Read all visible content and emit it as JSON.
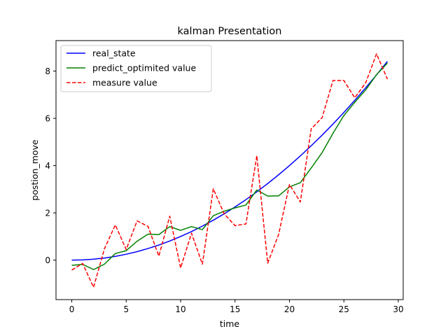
{
  "chart_data": {
    "type": "line",
    "title": "kalman Presentation",
    "xlabel": "time",
    "ylabel": "postion_move",
    "xlim": [
      -1.45,
      30.45
    ],
    "ylim": [
      -1.67,
      9.29
    ],
    "xticks": [
      0,
      5,
      10,
      15,
      20,
      25,
      30
    ],
    "yticks": [
      0,
      2,
      4,
      6,
      8
    ],
    "grid": false,
    "legend_position": "top-left",
    "series": [
      {
        "name": "real_state",
        "color": "#0000ff",
        "style": "solid",
        "x": [
          0,
          1,
          2,
          3,
          4,
          5,
          6,
          7,
          8,
          9,
          10,
          11,
          12,
          13,
          14,
          15,
          16,
          17,
          18,
          19,
          20,
          21,
          22,
          23,
          24,
          25,
          26,
          27,
          28,
          29
        ],
        "y": [
          0.0,
          0.01,
          0.04,
          0.09,
          0.16,
          0.25,
          0.36,
          0.49,
          0.64,
          0.81,
          1.0,
          1.21,
          1.44,
          1.69,
          1.96,
          2.25,
          2.56,
          2.89,
          3.24,
          3.61,
          4.0,
          4.41,
          4.84,
          5.29,
          5.76,
          6.25,
          6.76,
          7.29,
          7.84,
          8.41
        ]
      },
      {
        "name": "predict_optimited value",
        "color": "#008000",
        "style": "solid",
        "x": [
          0,
          1,
          2,
          3,
          4,
          5,
          6,
          7,
          8,
          9,
          10,
          11,
          12,
          13,
          14,
          15,
          16,
          17,
          18,
          19,
          20,
          21,
          22,
          23,
          24,
          25,
          26,
          27,
          28,
          29
        ],
        "y": [
          -0.22,
          -0.18,
          -0.4,
          -0.17,
          0.28,
          0.4,
          0.8,
          1.1,
          1.08,
          1.42,
          1.26,
          1.42,
          1.29,
          1.88,
          2.07,
          2.21,
          2.33,
          2.97,
          2.71,
          2.72,
          3.1,
          3.28,
          3.9,
          4.55,
          5.37,
          6.12,
          6.68,
          7.2,
          7.85,
          8.34
        ]
      },
      {
        "name": "measure value",
        "color": "#ff0000",
        "style": "dashed",
        "x": [
          0,
          1,
          2,
          3,
          4,
          5,
          6,
          7,
          8,
          9,
          10,
          11,
          12,
          13,
          14,
          15,
          16,
          17,
          18,
          19,
          20,
          21,
          22,
          23,
          24,
          25,
          26,
          27,
          28,
          29
        ],
        "y": [
          -0.42,
          -0.14,
          -1.15,
          0.48,
          1.49,
          0.45,
          1.66,
          1.43,
          0.17,
          1.86,
          -0.33,
          1.14,
          -0.17,
          3.02,
          1.96,
          1.46,
          1.53,
          4.42,
          -0.13,
          1.08,
          3.2,
          2.46,
          5.56,
          6.03,
          7.6,
          7.6,
          6.87,
          7.5,
          8.73,
          7.66
        ]
      }
    ]
  }
}
